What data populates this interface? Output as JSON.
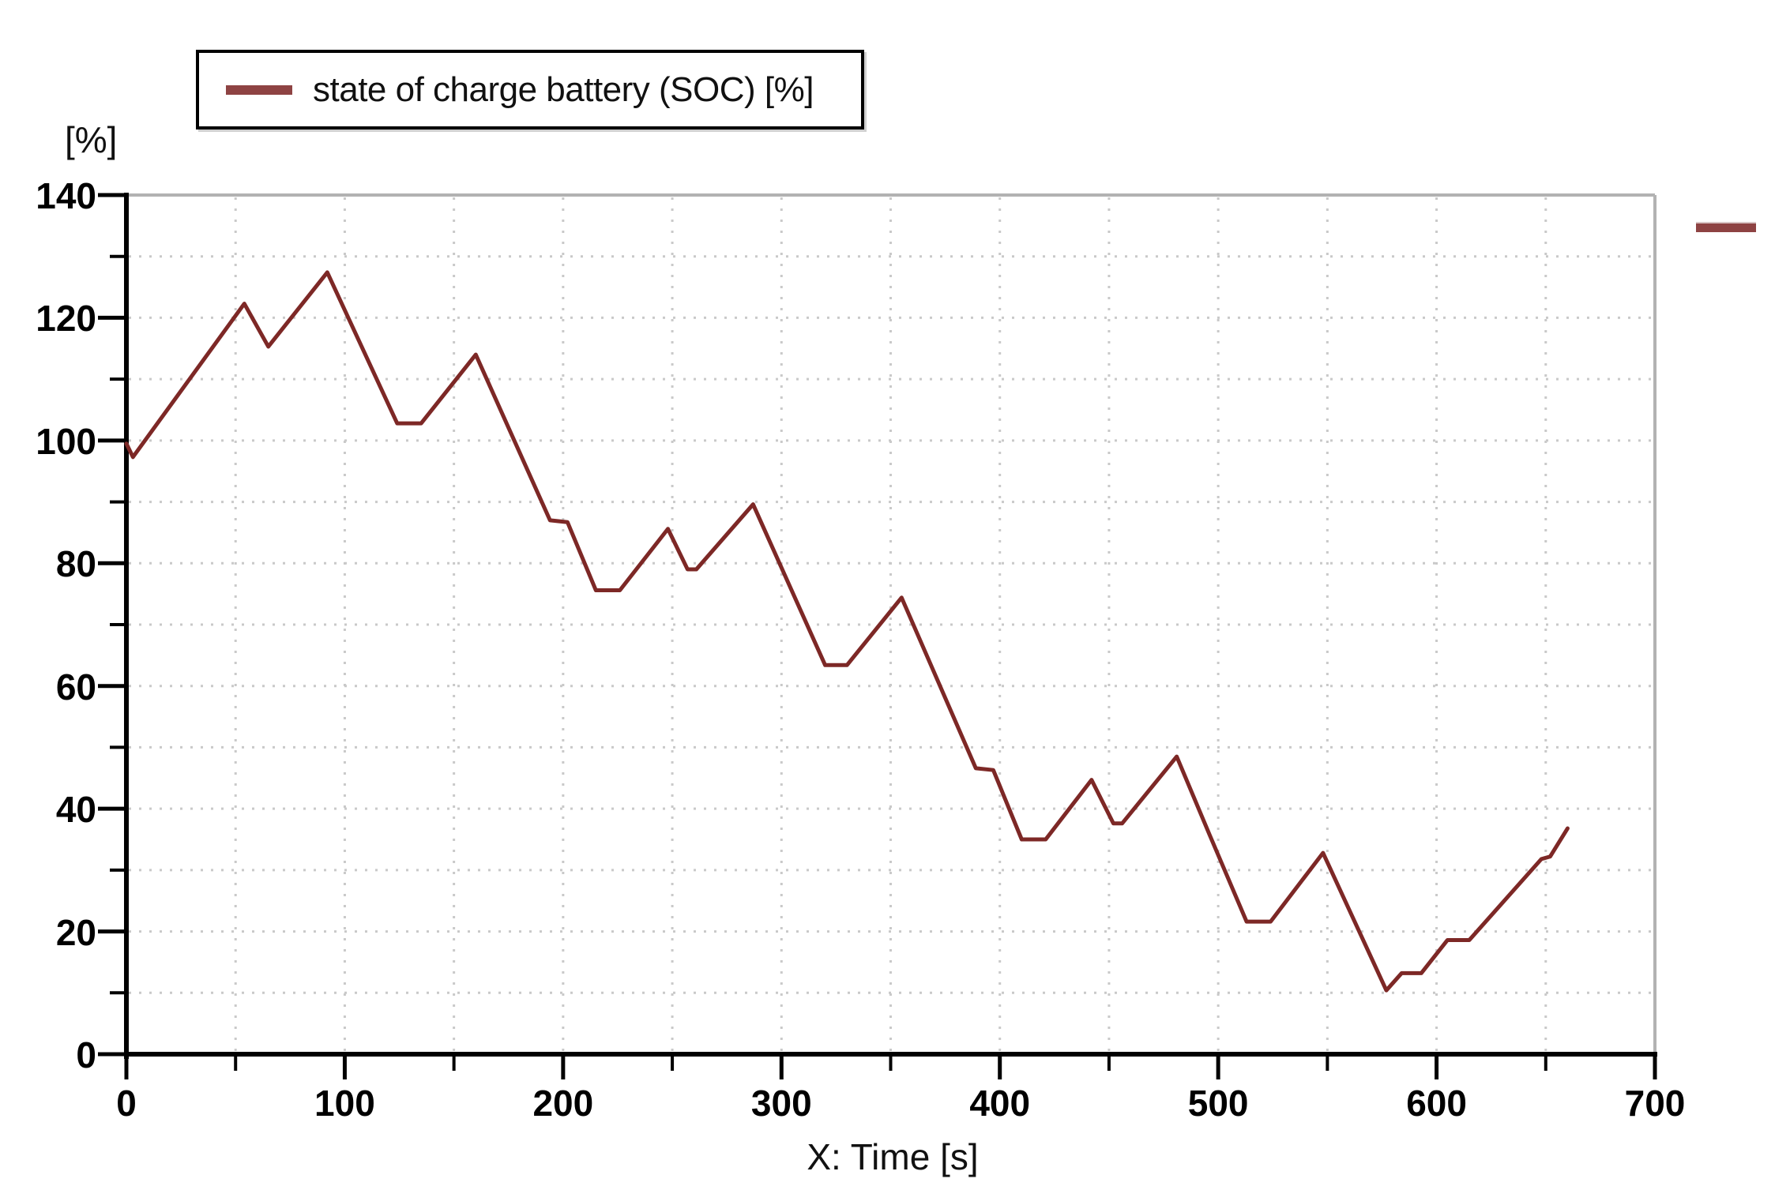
{
  "page": {
    "background": "#ffffff"
  },
  "legend": {
    "label": "state of charge battery (SOC) [%]",
    "swatch_color": "#8e4343"
  },
  "y_axis": {
    "unit_label": "[%]",
    "min": 0,
    "max": 140,
    "major_step": 20,
    "minor_step": 10,
    "tick_labels": [
      "0",
      "20",
      "40",
      "60",
      "80",
      "100",
      "120",
      "140"
    ]
  },
  "x_axis": {
    "title": "X: Time [s]",
    "min": 0,
    "max": 700,
    "major_step": 100,
    "minor_step": 50,
    "tick_labels": [
      "0",
      "100",
      "200",
      "300",
      "400",
      "500",
      "600",
      "700"
    ]
  },
  "colors": {
    "line": "#7d2826",
    "grid": "#c9c9c9",
    "plot_border": "#b2b2b2",
    "axis": "#000000"
  },
  "series_fragment": {
    "color": "#8e4343"
  },
  "chart_data": {
    "type": "line",
    "title": "state of charge battery (SOC) [%]",
    "xlabel": "X: Time [s]",
    "ylabel": "[%]",
    "xlim": [
      0,
      700
    ],
    "ylim": [
      0,
      140
    ],
    "grid": "dotted, horizontal every 10, vertical every 50",
    "legend_position": "top-left, boxed",
    "series": [
      {
        "name": "state of charge battery (SOC) [%]",
        "color": "#7d2826",
        "points": [
          [
            0,
            99.5
          ],
          [
            3,
            97.3
          ],
          [
            54,
            122.3
          ],
          [
            65,
            115.3
          ],
          [
            92,
            127.4
          ],
          [
            124,
            102.8
          ],
          [
            135,
            102.8
          ],
          [
            160,
            114
          ],
          [
            194,
            87
          ],
          [
            202,
            86.7
          ],
          [
            215,
            75.6
          ],
          [
            226,
            75.6
          ],
          [
            248,
            85.6
          ],
          [
            257,
            79
          ],
          [
            261,
            79
          ],
          [
            287,
            89.6
          ],
          [
            320,
            63.4
          ],
          [
            330,
            63.4
          ],
          [
            355,
            74.4
          ],
          [
            389,
            46.6
          ],
          [
            397,
            46.3
          ],
          [
            410,
            35
          ],
          [
            421,
            35
          ],
          [
            442,
            44.7
          ],
          [
            452,
            37.6
          ],
          [
            456,
            37.6
          ],
          [
            481,
            48.5
          ],
          [
            496,
            35.8
          ],
          [
            513,
            21.6
          ],
          [
            524,
            21.6
          ],
          [
            548,
            32.8
          ],
          [
            577,
            10.4
          ],
          [
            584,
            13.2
          ],
          [
            593,
            13.2
          ],
          [
            605,
            18.6
          ],
          [
            615,
            18.6
          ],
          [
            648,
            31.8
          ],
          [
            652,
            32.2
          ],
          [
            660,
            36.8
          ]
        ]
      }
    ]
  }
}
